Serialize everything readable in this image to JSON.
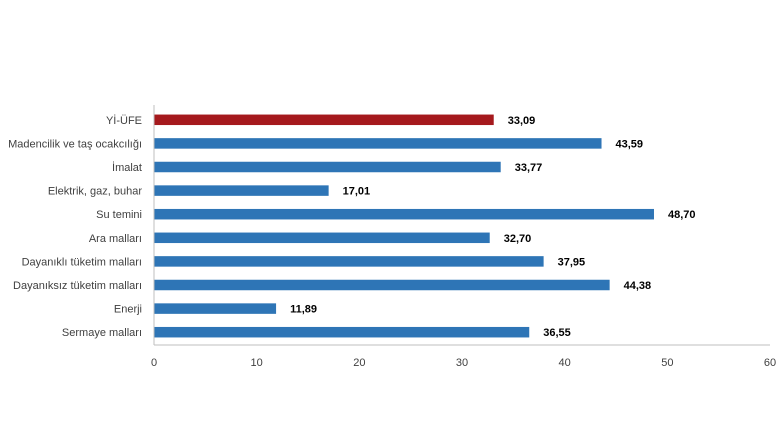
{
  "chart_data": {
    "type": "bar",
    "orientation": "horizontal",
    "categories": [
      "Yİ-ÜFE",
      "Madencilik ve taş ocakcılığı",
      "İmalat",
      "Elektrik, gaz, buhar",
      "Su temini",
      "Ara malları",
      "Dayanıklı tüketim malları",
      "Dayanıksız tüketim malları",
      "Enerji",
      "Sermaye malları"
    ],
    "values": [
      33.09,
      43.59,
      33.77,
      17.01,
      48.7,
      32.7,
      37.95,
      44.38,
      11.89,
      36.55
    ],
    "value_labels": [
      "33,09",
      "43,59",
      "33,77",
      "17,01",
      "48,70",
      "32,70",
      "37,95",
      "44,38",
      "11,89",
      "36,55"
    ],
    "xlim": [
      0,
      60
    ],
    "xticks": [
      "0",
      "10",
      "20",
      "30",
      "40",
      "50",
      "60"
    ],
    "title": "",
    "xlabel": "",
    "ylabel": "",
    "grid": false,
    "legend": "none",
    "colors": {
      "highlight": "#A5191D",
      "bar": "#2E75B6",
      "axis": "#BFBFBF"
    },
    "highlight_index": 0
  }
}
